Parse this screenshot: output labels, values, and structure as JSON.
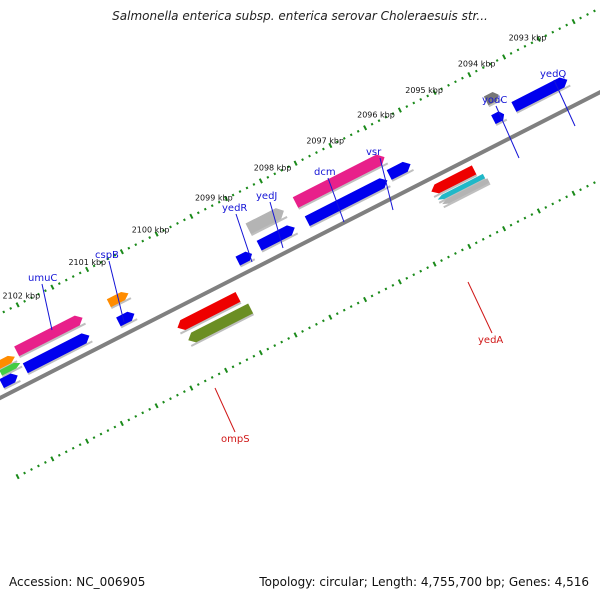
{
  "title": "Salmonella enterica subsp. enterica serovar Choleraesuis str...",
  "footer": {
    "accession": "Accession: NC_006905",
    "topology": "Topology: circular; Length: 4,755,700 bp; Genes: 4,516"
  },
  "scale_labels": [
    "2102 kbp",
    "2101 kbp",
    "2100 kbp",
    "2099 kbp",
    "2098 kbp",
    "2097 kbp",
    "2096 kbp",
    "2095 kbp",
    "2094 kbp",
    "2093 kbp"
  ],
  "genes": [
    {
      "name": "umuC",
      "strand": "forward",
      "color": "#1414d6"
    },
    {
      "name": "cspB",
      "strand": "forward",
      "color": "#1414d6"
    },
    {
      "name": "yedR",
      "strand": "forward",
      "color": "#1414d6"
    },
    {
      "name": "yedJ",
      "strand": "forward",
      "color": "#1414d6"
    },
    {
      "name": "dcm",
      "strand": "forward",
      "color": "#1414d6"
    },
    {
      "name": "vsr",
      "strand": "forward",
      "color": "#1414d6"
    },
    {
      "name": "yodC",
      "strand": "forward",
      "color": "#1414d6"
    },
    {
      "name": "yedQ",
      "strand": "forward",
      "color": "#1414d6"
    },
    {
      "name": "ompS",
      "strand": "reverse",
      "color": "#e02020"
    },
    {
      "name": "yedA",
      "strand": "reverse",
      "color": "#e02020"
    }
  ],
  "colors": {
    "backbone": "#808080",
    "tick": "#1a8a1a",
    "forward_label": "#1414d6",
    "reverse_label": "#d01818",
    "forward_gene": "#0000ee",
    "reverse_gene": "#ee0000",
    "pink_feature": "#e8208a",
    "orange_feature": "#ff8c00",
    "green_feature": "#6b8e23",
    "gray_feature": "#b4b4b4",
    "cyan_feature": "#20b8c8"
  }
}
